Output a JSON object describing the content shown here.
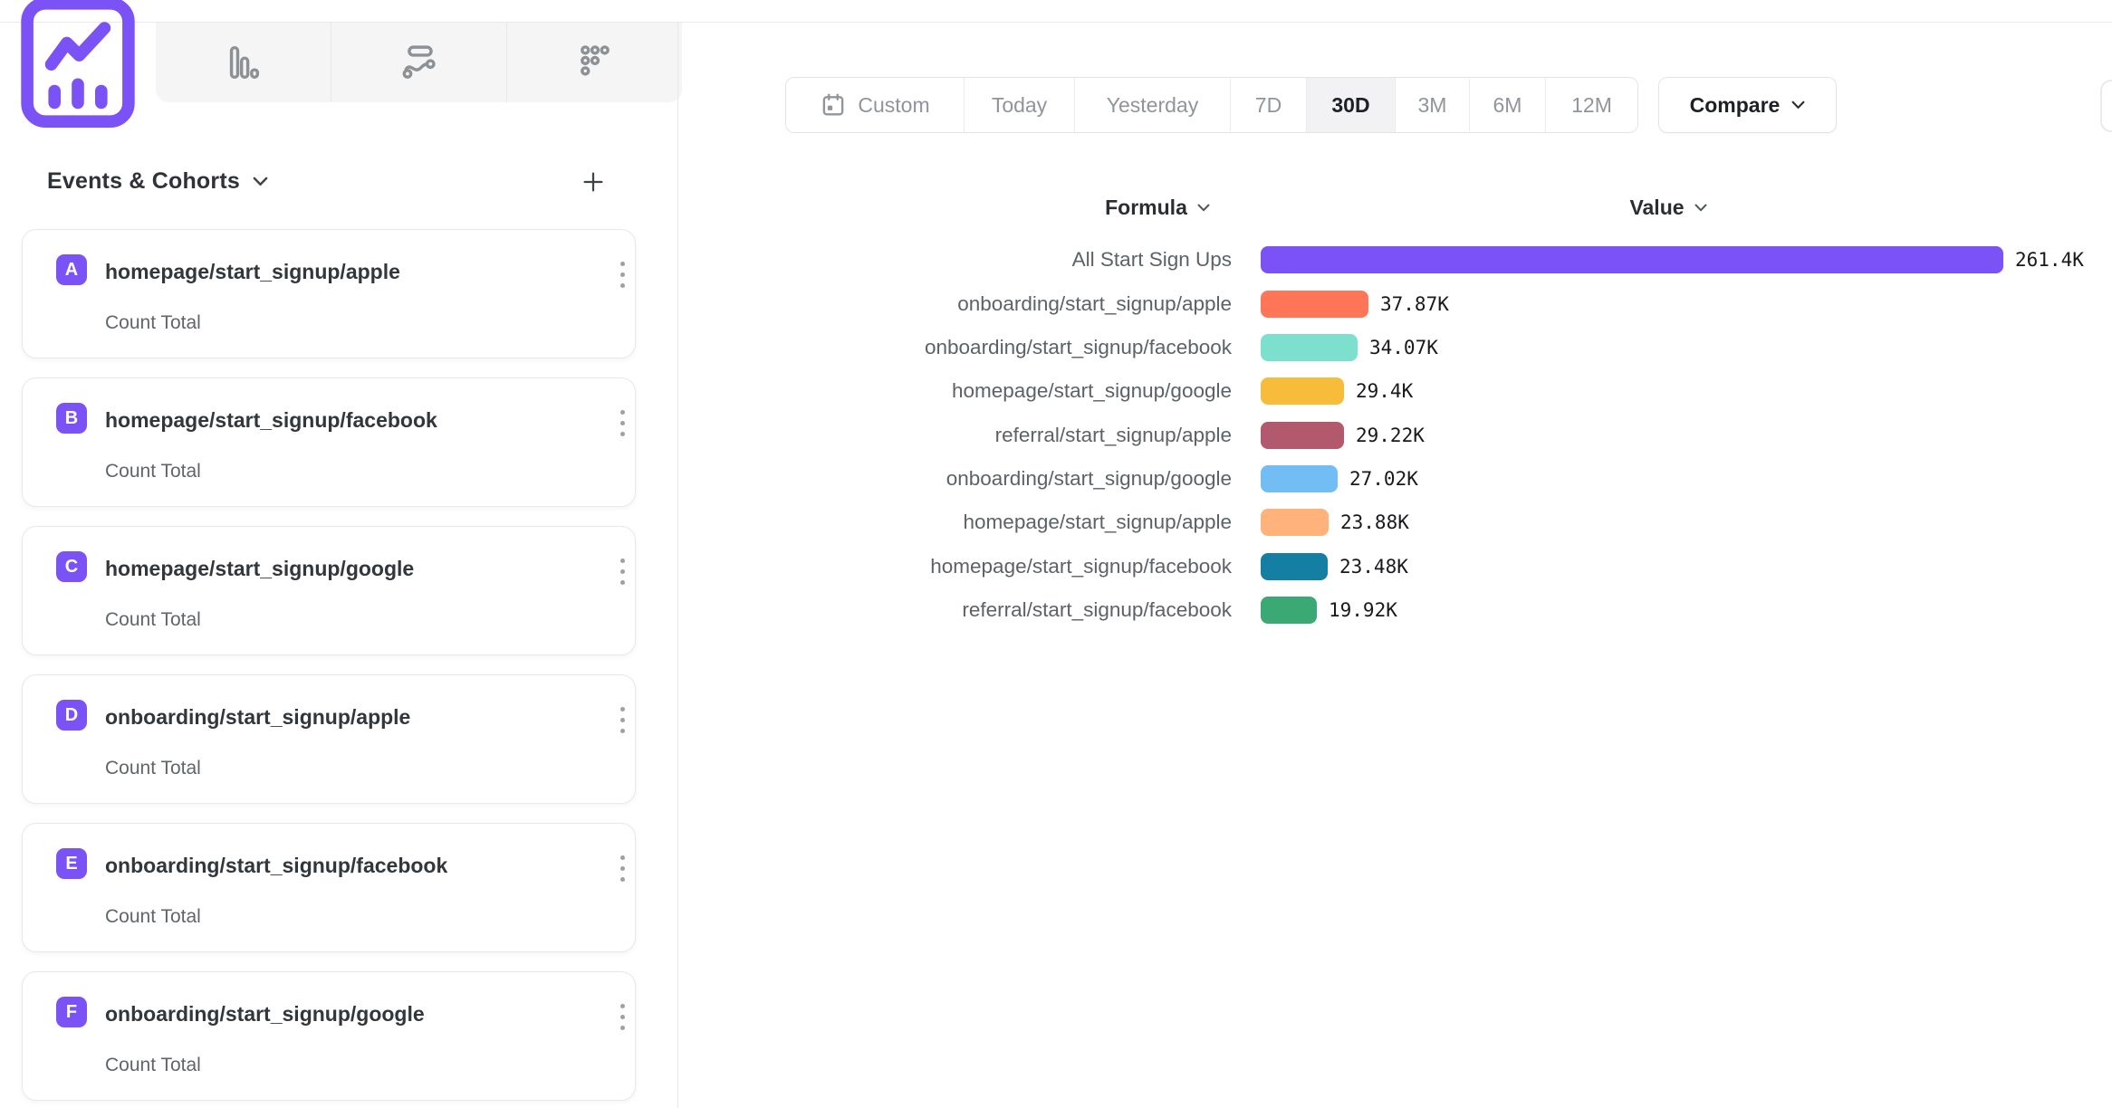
{
  "tabs": {
    "items": [
      {
        "icon": "line-chart-icon",
        "active": true
      },
      {
        "icon": "bar-chart-icon",
        "active": false
      },
      {
        "icon": "flows-icon",
        "active": false
      },
      {
        "icon": "retention-dots-icon",
        "active": false
      }
    ]
  },
  "sidebar": {
    "title": "Events & Cohorts",
    "events": [
      {
        "badge": "A",
        "name": "homepage/start_signup/apple",
        "measure": "Count Total"
      },
      {
        "badge": "B",
        "name": "homepage/start_signup/facebook",
        "measure": "Count Total"
      },
      {
        "badge": "C",
        "name": "homepage/start_signup/google",
        "measure": "Count Total"
      },
      {
        "badge": "D",
        "name": "onboarding/start_signup/apple",
        "measure": "Count Total"
      },
      {
        "badge": "E",
        "name": "onboarding/start_signup/facebook",
        "measure": "Count Total"
      },
      {
        "badge": "F",
        "name": "onboarding/start_signup/google",
        "measure": "Count Total"
      }
    ],
    "badge_color": "#7A52F5"
  },
  "toolbar": {
    "date_ranges": [
      "Custom",
      "Today",
      "Yesterday",
      "7D",
      "30D",
      "3M",
      "6M",
      "12M"
    ],
    "active_range": "30D",
    "compare_label": "Compare"
  },
  "chart_header": {
    "formula_label": "Formula",
    "value_label": "Value"
  },
  "chart_data": {
    "type": "bar",
    "orientation": "horizontal",
    "title": "",
    "xlabel": "",
    "ylabel": "",
    "legend": false,
    "grid": false,
    "categories": [
      "All Start Sign Ups",
      "onboarding/start_signup/apple",
      "onboarding/start_signup/facebook",
      "homepage/start_signup/google",
      "referral/start_signup/apple",
      "onboarding/start_signup/google",
      "homepage/start_signup/apple",
      "homepage/start_signup/facebook",
      "referral/start_signup/facebook"
    ],
    "values": [
      261400,
      37870,
      34070,
      29400,
      29220,
      27020,
      23880,
      23480,
      19920
    ],
    "value_labels": [
      "261.4K",
      "37.87K",
      "34.07K",
      "29.4K",
      "29.22K",
      "27.02K",
      "23.88K",
      "23.48K",
      "19.92K"
    ],
    "colors": [
      "#7A52F5",
      "#FF7557",
      "#7DE0CE",
      "#F8BC3B",
      "#B2596E",
      "#72BEF4",
      "#FFB27A",
      "#147FA3",
      "#3BA974"
    ],
    "max_value": 261400
  }
}
